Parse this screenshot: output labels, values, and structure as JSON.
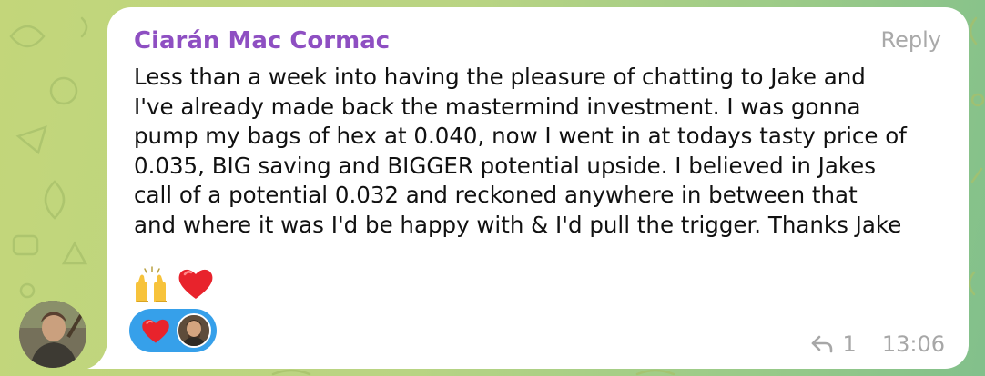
{
  "wallpaper": {
    "pattern_icon": "doodle-pattern",
    "gradient_start": "#c3d67a",
    "gradient_end": "#82c08b"
  },
  "message": {
    "sender": "Ciarán Mac Cormac",
    "sender_color": "#8e4fc2",
    "reply_label": "Reply",
    "lines": [
      "Less than a week into having the pleasure of chatting to Jake and",
      "I've already made back the mastermind investment. I was gonna",
      "pump my bags of hex at 0.040, now I went in at todays tasty price of",
      "0.035, BIG saving and BIGGER potential upside. I believed in Jakes",
      "call of a potential 0.032 and reckoned anywhere in between that",
      "and where it was I'd be happy with & I'd pull the trigger. Thanks Jake"
    ],
    "emoji_icons": [
      "raising-hands-emoji",
      "red-heart-emoji"
    ],
    "reaction": {
      "icon": "red-heart-emoji",
      "color": "#36a0ea"
    },
    "reply_count": "1",
    "time": "13:06"
  }
}
